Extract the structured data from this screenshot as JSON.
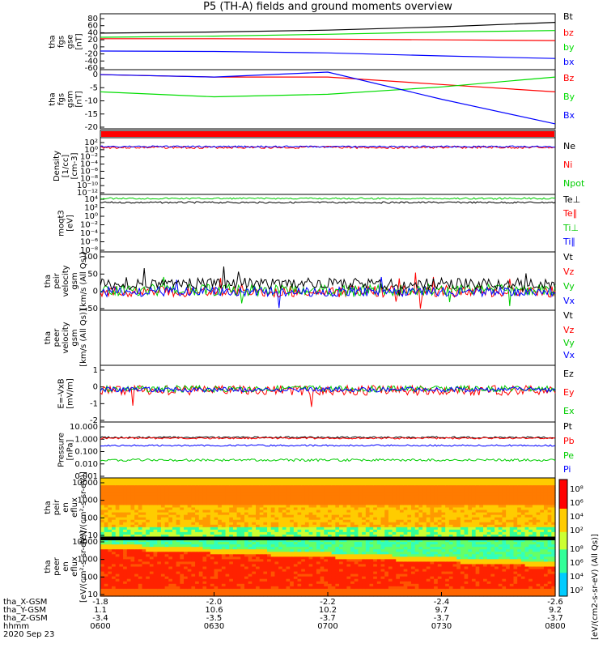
{
  "title": "P5 (TH-A) fields and ground moments overview",
  "colors": {
    "black": "#000000",
    "red": "#ff0000",
    "green": "#00dd00",
    "blue": "#0000ff"
  },
  "chart_data": [
    {
      "type": "line",
      "id": "fgs_gse",
      "ylabel": [
        "tha",
        "fgs",
        "gse",
        "[nT]"
      ],
      "ticks": [
        "80",
        "60",
        "40",
        "20",
        "0",
        "-20",
        "-40",
        "-60"
      ],
      "ylim": [
        -65,
        85
      ],
      "x": [
        0,
        0.25,
        0.5,
        0.75,
        1
      ],
      "series": [
        {
          "name": "Bt",
          "color": "#000000",
          "values": [
            33,
            36,
            41,
            50,
            62
          ]
        },
        {
          "name": "bz",
          "color": "#ff0000",
          "values": [
            18,
            18,
            17,
            15,
            13
          ]
        },
        {
          "name": "by",
          "color": "#00dd00",
          "values": [
            22,
            25,
            30,
            36,
            40
          ]
        },
        {
          "name": "bx",
          "color": "#0000ff",
          "values": [
            -15,
            -16,
            -20,
            -28,
            -35
          ]
        }
      ]
    },
    {
      "type": "line",
      "id": "fgs_gsm",
      "ylabel": [
        "tha",
        "fgs",
        "gsm",
        "[nT]"
      ],
      "ticks": [
        "0",
        "-5",
        "-10",
        "-15",
        "-20"
      ],
      "ylim": [
        -22,
        2
      ],
      "x": [
        0,
        0.25,
        0.5,
        0.75,
        1
      ],
      "series": [
        {
          "name": "Bz",
          "color": "#ff0000",
          "values": [
            0,
            -1,
            -1,
            -4,
            -7
          ]
        },
        {
          "name": "By",
          "color": "#00dd00",
          "values": [
            -7,
            -9,
            -8,
            -5,
            -1
          ]
        },
        {
          "name": "Bx",
          "color": "#0000ff",
          "values": [
            0,
            -1,
            1,
            -10,
            -20
          ]
        }
      ]
    },
    {
      "type": "line",
      "id": "density",
      "ylabel": [
        "Density",
        "[1/cc]",
        "[cm-3]"
      ],
      "ticks": [
        "10²",
        "10⁰",
        "10⁻²",
        "10⁻⁴",
        "10⁻⁶",
        "10⁻⁸",
        "10⁻¹⁰",
        "10⁻¹²"
      ],
      "ylim": [
        -13,
        3
      ],
      "log": true,
      "series": [
        {
          "name": "Ne"
        },
        {
          "name": "Ni"
        },
        {
          "name": "Npot"
        }
      ]
    },
    {
      "type": "line",
      "id": "temperature",
      "ylabel": [
        "moqt3",
        "[eV]"
      ],
      "ticks": [
        "10⁴",
        "10²",
        "10⁰",
        "10⁻²",
        "10⁻⁴",
        "10⁻⁶",
        "10⁻⁸"
      ],
      "ylim": [
        -9,
        4.5
      ],
      "log": true,
      "series": [
        {
          "name": "Te⊥"
        },
        {
          "name": "Te∥"
        },
        {
          "name": "Ti⊥"
        },
        {
          "name": "Ti∥"
        }
      ]
    },
    {
      "type": "line",
      "id": "peir_velocity",
      "ylabel": [
        "tha",
        "peir",
        "velocity",
        "gsm",
        "[km/s (All Qs)]"
      ],
      "ticks": [
        "100",
        "50",
        "0",
        "-50"
      ],
      "ylim": [
        -50,
        100
      ],
      "series": [
        {
          "name": "Vt"
        },
        {
          "name": "Vz"
        },
        {
          "name": "Vy"
        },
        {
          "name": "Vx"
        }
      ]
    },
    {
      "type": "line",
      "id": "peer_velocity",
      "ylabel": [
        "tha",
        "peer",
        "velocity",
        "gsm",
        "[km/s (All Qs)]"
      ],
      "ticks": [],
      "series": [
        {
          "name": "Vt"
        },
        {
          "name": "Vz"
        },
        {
          "name": "Vy"
        },
        {
          "name": "Vx"
        }
      ]
    },
    {
      "type": "line",
      "id": "efield",
      "ylabel": [
        "E=-VxB",
        "[mV/m]"
      ],
      "ticks": [
        "1",
        "0",
        "-1",
        "-2"
      ],
      "ylim": [
        -3,
        1.5
      ],
      "series": [
        {
          "name": "Ez"
        },
        {
          "name": "Ey"
        },
        {
          "name": "Ex"
        }
      ]
    },
    {
      "type": "line",
      "id": "pressure",
      "ylabel": [
        "Pressure",
        "[nPa]"
      ],
      "ticks": [
        "10.000",
        "1.000",
        "0.100",
        "0.010",
        "0.001"
      ],
      "ylim": [
        -3,
        1
      ],
      "log": true,
      "series": [
        {
          "name": "Pt"
        },
        {
          "name": "Pb"
        },
        {
          "name": "Pe"
        },
        {
          "name": "Pi"
        }
      ]
    },
    {
      "type": "heatmap",
      "id": "peir_eflux",
      "ylabel": [
        "tha",
        "peir",
        "en",
        "eflux",
        "[eV/(cm²-s-sr-eV)]"
      ],
      "ticks": [
        "10000",
        "1000",
        "100",
        "10"
      ]
    },
    {
      "type": "heatmap",
      "id": "peer_eflux",
      "ylabel": [
        "tha",
        "peer",
        "en",
        "eflux",
        "[eV/(cm²-s-sr-eV)]"
      ],
      "ticks": [
        "10000",
        "1000",
        "100",
        "10"
      ]
    }
  ],
  "colorbar": {
    "ticks": [
      "10⁸",
      "10⁶",
      "10⁴",
      "10²"
    ],
    "label": "[eV/(cm2-s-sr-eV) (All Qs)]"
  },
  "xaxis": {
    "rows": [
      {
        "label": "tha_X-GSM",
        "values": [
          "-1.8",
          "-2.0",
          "-2.2",
          "-2.4",
          "-2.6"
        ]
      },
      {
        "label": "tha_Y-GSM",
        "values": [
          "1.1",
          "10.6",
          "10.2",
          "9.7",
          "9.2"
        ]
      },
      {
        "label": "tha_Z-GSM",
        "values": [
          "-3.4",
          "-3.5",
          "-3.7",
          "-3.7",
          "-3.7"
        ]
      },
      {
        "label": "hhmm",
        "values": [
          "0600",
          "0630",
          "0700",
          "0730",
          "0800"
        ]
      }
    ],
    "date": "2020 Sep 23"
  }
}
